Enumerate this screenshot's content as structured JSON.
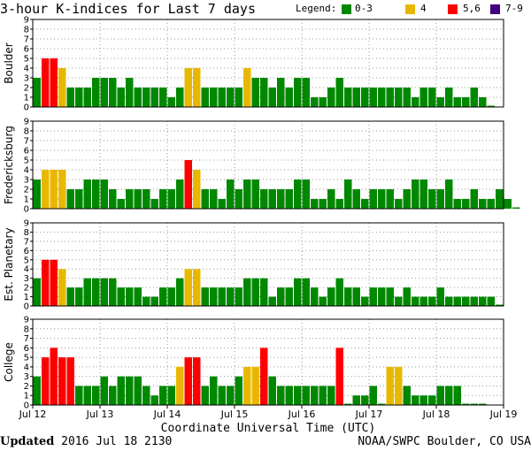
{
  "title": "3-hour K-indices for Last 7 days",
  "legend": {
    "label": "Legend:",
    "items": [
      {
        "label": "0-3",
        "color": "#008800"
      },
      {
        "label": "4",
        "color": "#e8b800"
      },
      {
        "label": "5,6",
        "color": "#ff0000"
      },
      {
        "label": "7-9",
        "color": "#400080"
      }
    ]
  },
  "xlabel": "Coordinate Universal Time (UTC)",
  "footer": {
    "updated_label": "Updated",
    "updated_value": "2016 Jul 18 2130",
    "source": "NOAA/SWPC Boulder, CO USA"
  },
  "chart_data": {
    "type": "bar",
    "x_ticks": [
      "Jul 12",
      "Jul 13",
      "Jul 14",
      "Jul 15",
      "Jul 16",
      "Jul 17",
      "Jul 18",
      "Jul 19"
    ],
    "ylim": [
      0,
      9
    ],
    "y_ticks": [
      0,
      1,
      2,
      3,
      4,
      5,
      6,
      7,
      8,
      9
    ],
    "colors": {
      "low": "#008800",
      "mid": "#e8b800",
      "high": "#ff0000",
      "severe": "#400080"
    },
    "series": [
      {
        "name": "Boulder",
        "values": [
          3,
          5,
          5,
          4,
          2,
          2,
          2,
          3,
          3,
          3,
          2,
          3,
          2,
          2,
          2,
          2,
          1,
          2,
          4,
          4,
          2,
          2,
          2,
          2,
          2,
          4,
          3,
          3,
          2,
          3,
          2,
          3,
          3,
          1,
          1,
          2,
          3,
          2,
          2,
          2,
          2,
          2,
          2,
          2,
          2,
          1,
          2,
          2,
          1,
          2,
          1,
          1,
          2,
          1,
          0
        ]
      },
      {
        "name": "Fredericksburg",
        "values": [
          3,
          4,
          4,
          4,
          2,
          2,
          3,
          3,
          3,
          2,
          1,
          2,
          2,
          2,
          1,
          2,
          2,
          3,
          5,
          4,
          2,
          2,
          1,
          3,
          2,
          3,
          3,
          2,
          2,
          2,
          2,
          3,
          3,
          1,
          1,
          2,
          1,
          3,
          2,
          1,
          2,
          2,
          2,
          1,
          2,
          3,
          3,
          2,
          2,
          3,
          1,
          1,
          2,
          1,
          1,
          2,
          1,
          0
        ]
      },
      {
        "name": "Est. Planetary",
        "values": [
          3,
          5,
          5,
          4,
          2,
          2,
          3,
          3,
          3,
          3,
          2,
          2,
          2,
          1,
          1,
          2,
          2,
          3,
          4,
          4,
          2,
          2,
          2,
          2,
          2,
          3,
          3,
          3,
          1,
          2,
          2,
          3,
          3,
          2,
          1,
          2,
          3,
          2,
          2,
          1,
          2,
          2,
          2,
          1,
          2,
          1,
          1,
          1,
          2,
          1,
          1,
          1,
          1,
          1,
          1,
          0
        ]
      },
      {
        "name": "College",
        "values": [
          3,
          5,
          6,
          5,
          5,
          2,
          2,
          2,
          3,
          2,
          3,
          3,
          3,
          2,
          1,
          2,
          2,
          4,
          5,
          5,
          2,
          3,
          2,
          2,
          3,
          4,
          4,
          6,
          3,
          2,
          2,
          2,
          2,
          2,
          2,
          2,
          6,
          0,
          1,
          1,
          2,
          0,
          4,
          4,
          2,
          1,
          1,
          1,
          2,
          2,
          2,
          0,
          0,
          0
        ]
      }
    ]
  }
}
